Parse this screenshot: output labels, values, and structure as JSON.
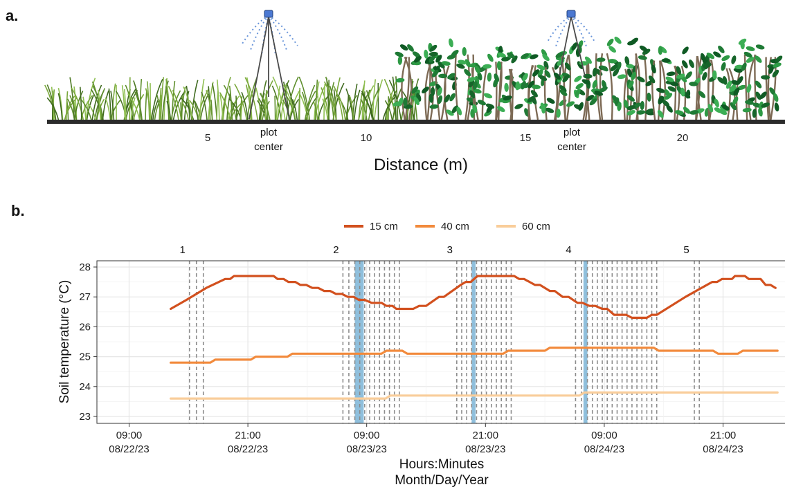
{
  "panel_a": {
    "letter": "a.",
    "axis_title": "Distance (m)",
    "ticks": [
      "5",
      "10",
      "15",
      "20"
    ],
    "marker_labels": [
      {
        "line1": "plot",
        "line2": "center"
      },
      {
        "line1": "plot",
        "line2": "center"
      }
    ]
  },
  "panel_b": {
    "letter": "b."
  },
  "chart_data": {
    "type": "line",
    "title": "",
    "ylabel": "Soil temperature (°C)",
    "xlabel_line1": "Hours:Minutes",
    "xlabel_line2": "Month/Day/Year",
    "x_unit": "hours since 09:00 08/22/23",
    "xlim": [
      0,
      63
    ],
    "ylim": [
      22.8,
      28.25
    ],
    "y_ticks": [
      23,
      24,
      25,
      26,
      27,
      28
    ],
    "x_ticks": [
      {
        "x": 0,
        "time": "09:00",
        "date": "08/22/23"
      },
      {
        "x": 12,
        "time": "21:00",
        "date": "08/22/23"
      },
      {
        "x": 24,
        "time": "09:00",
        "date": "08/23/23"
      },
      {
        "x": 36,
        "time": "21:00",
        "date": "08/23/23"
      },
      {
        "x": 48,
        "time": "09:00",
        "date": "08/24/23"
      },
      {
        "x": 60,
        "time": "21:00",
        "date": "08/24/23"
      }
    ],
    "grid": true,
    "legend_position": "top",
    "series": [
      {
        "name": "15 cm",
        "color": "#d2501e",
        "points": [
          [
            4.2,
            26.6
          ],
          [
            5.8,
            26.9
          ],
          [
            7.8,
            27.3
          ],
          [
            9.7,
            27.6
          ],
          [
            10.2,
            27.6
          ],
          [
            10.6,
            27.7
          ],
          [
            13,
            27.7
          ],
          [
            14.6,
            27.7
          ],
          [
            15,
            27.6
          ],
          [
            15.6,
            27.6
          ],
          [
            16.1,
            27.5
          ],
          [
            16.8,
            27.5
          ],
          [
            17.3,
            27.4
          ],
          [
            17.9,
            27.4
          ],
          [
            18.5,
            27.3
          ],
          [
            19.1,
            27.3
          ],
          [
            19.7,
            27.2
          ],
          [
            20.3,
            27.2
          ],
          [
            20.9,
            27.1
          ],
          [
            21.5,
            27.1
          ],
          [
            22.1,
            27.0
          ],
          [
            22.7,
            27.0
          ],
          [
            23.2,
            26.9
          ],
          [
            23.8,
            26.9
          ],
          [
            24.5,
            26.8
          ],
          [
            25.5,
            26.8
          ],
          [
            26,
            26.7
          ],
          [
            26.6,
            26.7
          ],
          [
            27,
            26.6
          ],
          [
            28.7,
            26.6
          ],
          [
            29.3,
            26.7
          ],
          [
            30,
            26.7
          ],
          [
            31.3,
            27.0
          ],
          [
            31.8,
            27.0
          ],
          [
            33.5,
            27.4
          ],
          [
            34,
            27.5
          ],
          [
            34.5,
            27.5
          ],
          [
            35.2,
            27.7
          ],
          [
            38.9,
            27.7
          ],
          [
            39.4,
            27.6
          ],
          [
            39.9,
            27.6
          ],
          [
            41,
            27.4
          ],
          [
            41.5,
            27.4
          ],
          [
            42.5,
            27.2
          ],
          [
            43,
            27.2
          ],
          [
            43.8,
            27.0
          ],
          [
            44.4,
            27.0
          ],
          [
            45.3,
            26.8
          ],
          [
            45.8,
            26.8
          ],
          [
            46.5,
            26.7
          ],
          [
            47.1,
            26.7
          ],
          [
            47.8,
            26.6
          ],
          [
            48.3,
            26.6
          ],
          [
            49,
            26.4
          ],
          [
            50.2,
            26.4
          ],
          [
            50.8,
            26.3
          ],
          [
            52.3,
            26.3
          ],
          [
            52.8,
            26.4
          ],
          [
            53.3,
            26.4
          ],
          [
            56.2,
            27.0
          ],
          [
            58.9,
            27.5
          ],
          [
            59.4,
            27.5
          ],
          [
            59.9,
            27.6
          ],
          [
            60.9,
            27.6
          ],
          [
            61.2,
            27.7
          ],
          [
            62.2,
            27.7
          ],
          [
            62.6,
            27.6
          ],
          [
            63.8,
            27.6
          ],
          [
            64.3,
            27.4
          ],
          [
            64.8,
            27.4
          ],
          [
            65.3,
            27.3
          ]
        ]
      },
      {
        "name": "40 cm",
        "color": "#f28a3c",
        "points": [
          [
            4.2,
            24.8
          ],
          [
            8.2,
            24.8
          ],
          [
            8.7,
            24.9
          ],
          [
            12.3,
            24.9
          ],
          [
            12.8,
            25.0
          ],
          [
            16,
            25.0
          ],
          [
            16.5,
            25.1
          ],
          [
            25.5,
            25.1
          ],
          [
            26,
            25.2
          ],
          [
            27.6,
            25.2
          ],
          [
            28.1,
            25.1
          ],
          [
            37.8,
            25.1
          ],
          [
            38.3,
            25.2
          ],
          [
            42,
            25.2
          ],
          [
            42.5,
            25.3
          ],
          [
            53,
            25.3
          ],
          [
            53.5,
            25.2
          ],
          [
            59,
            25.2
          ],
          [
            59.5,
            25.1
          ],
          [
            61.5,
            25.1
          ],
          [
            62,
            25.2
          ],
          [
            65.5,
            25.2
          ]
        ]
      },
      {
        "name": "60 cm",
        "color": "#f9cd9a",
        "points": [
          [
            4.2,
            23.6
          ],
          [
            25.9,
            23.6
          ],
          [
            26.4,
            23.7
          ],
          [
            45.5,
            23.7
          ],
          [
            46,
            23.8
          ],
          [
            65.5,
            23.8
          ]
        ]
      }
    ],
    "event_labels": [
      {
        "label": "1",
        "x": 5.4
      },
      {
        "label": "2",
        "x": 20.9
      },
      {
        "label": "3",
        "x": 32.4
      },
      {
        "label": "4",
        "x": 44.4
      },
      {
        "label": "5",
        "x": 56.3
      }
    ],
    "dashed_lines_x": [
      6.1,
      6.8,
      7.5,
      21.6,
      22.2,
      22.8,
      23.3,
      23.8,
      24.3,
      24.8,
      25.3,
      25.8,
      26.3,
      26.8,
      27.3,
      33.1,
      33.6,
      34.1,
      34.6,
      35.1,
      35.6,
      36.1,
      36.6,
      37.1,
      37.6,
      38.1,
      38.6,
      45.1,
      45.7,
      46.3,
      46.8,
      47.3,
      47.8,
      48.3,
      48.8,
      49.3,
      49.8,
      50.3,
      50.8,
      51.3,
      51.8,
      52.3,
      52.8,
      53.3,
      57.1,
      57.6
    ],
    "highlight_bands": [
      {
        "x0": 22.8,
        "x1": 23.7
      },
      {
        "x0": 34.6,
        "x1": 35.0
      },
      {
        "x0": 45.9,
        "x1": 46.3
      }
    ],
    "highlight_color": "#8fbfdc"
  }
}
